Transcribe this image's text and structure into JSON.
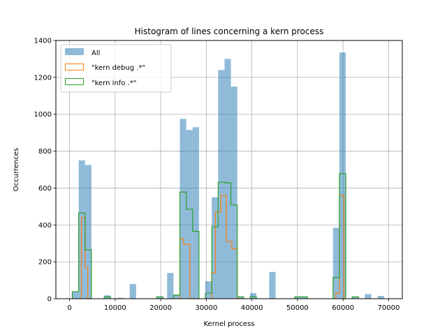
{
  "chart_data": {
    "type": "bar",
    "title": "Histogram of lines concerning a kern process",
    "xlabel": "Kernel process",
    "ylabel": "Occurrences",
    "xlim": [
      -3000,
      73000
    ],
    "ylim": [
      0,
      1400
    ],
    "xticks": [
      0,
      10000,
      20000,
      30000,
      40000,
      50000,
      60000,
      70000
    ],
    "yticks": [
      0,
      200,
      400,
      600,
      800,
      1000,
      1200,
      1400
    ],
    "grid": true,
    "legend_position": "top-left",
    "bin_width": 1400,
    "series": [
      {
        "name": "All",
        "style": "filled",
        "color": "#1f77b4",
        "opacity": 0.5,
        "bins": [
          {
            "x0": 600,
            "x1": 2000,
            "value": 40
          },
          {
            "x0": 2000,
            "x1": 3400,
            "value": 750
          },
          {
            "x0": 3400,
            "x1": 4800,
            "value": 725
          },
          {
            "x0": 7600,
            "x1": 9000,
            "value": 18
          },
          {
            "x0": 10400,
            "x1": 11800,
            "value": 5
          },
          {
            "x0": 13200,
            "x1": 14600,
            "value": 80
          },
          {
            "x0": 19100,
            "x1": 20500,
            "value": 12
          },
          {
            "x0": 21400,
            "x1": 22800,
            "value": 140
          },
          {
            "x0": 22800,
            "x1": 24200,
            "value": 20
          },
          {
            "x0": 24200,
            "x1": 25600,
            "value": 975
          },
          {
            "x0": 25600,
            "x1": 27000,
            "value": 915
          },
          {
            "x0": 27000,
            "x1": 28400,
            "value": 930
          },
          {
            "x0": 29800,
            "x1": 31200,
            "value": 95
          },
          {
            "x0": 31200,
            "x1": 32600,
            "value": 550
          },
          {
            "x0": 32600,
            "x1": 34000,
            "value": 1240
          },
          {
            "x0": 34000,
            "x1": 35400,
            "value": 1300
          },
          {
            "x0": 35400,
            "x1": 36800,
            "value": 1150
          },
          {
            "x0": 36800,
            "x1": 38200,
            "value": 12
          },
          {
            "x0": 39600,
            "x1": 41000,
            "value": 30
          },
          {
            "x0": 43800,
            "x1": 45200,
            "value": 145
          },
          {
            "x0": 49400,
            "x1": 50800,
            "value": 10
          },
          {
            "x0": 50800,
            "x1": 52200,
            "value": 10
          },
          {
            "x0": 57800,
            "x1": 59200,
            "value": 385
          },
          {
            "x0": 59200,
            "x1": 60600,
            "value": 1335
          },
          {
            "x0": 62000,
            "x1": 63400,
            "value": 10
          },
          {
            "x0": 64800,
            "x1": 66200,
            "value": 25
          },
          {
            "x0": 67600,
            "x1": 69000,
            "value": 15
          }
        ]
      },
      {
        "name": "\"kern debug .*\"",
        "style": "step",
        "color": "#ff7f0e",
        "bins": [
          {
            "x0": 2000,
            "x1": 2600,
            "value": 0
          },
          {
            "x0": 2600,
            "x1": 3400,
            "value": 440
          },
          {
            "x0": 3400,
            "x1": 4000,
            "value": 170
          },
          {
            "x0": 4000,
            "x1": 4800,
            "value": 0
          },
          {
            "x0": 24200,
            "x1": 25000,
            "value": 325
          },
          {
            "x0": 25000,
            "x1": 26400,
            "value": 295
          },
          {
            "x0": 26400,
            "x1": 27600,
            "value": 0
          },
          {
            "x0": 27600,
            "x1": 28200,
            "value": 0
          },
          {
            "x0": 31200,
            "x1": 32000,
            "value": 140
          },
          {
            "x0": 32000,
            "x1": 33200,
            "value": 470
          },
          {
            "x0": 33200,
            "x1": 34400,
            "value": 560
          },
          {
            "x0": 34400,
            "x1": 35600,
            "value": 310
          },
          {
            "x0": 35600,
            "x1": 36800,
            "value": 270
          },
          {
            "x0": 36800,
            "x1": 37600,
            "value": 0
          },
          {
            "x0": 58400,
            "x1": 59200,
            "value": 30
          },
          {
            "x0": 59200,
            "x1": 60200,
            "value": 560
          },
          {
            "x0": 60200,
            "x1": 60600,
            "value": 0
          }
        ]
      },
      {
        "name": "\"kern info .*\"",
        "style": "step",
        "color": "#2ca02c",
        "bins": [
          {
            "x0": 600,
            "x1": 2000,
            "value": 38
          },
          {
            "x0": 2000,
            "x1": 3400,
            "value": 465
          },
          {
            "x0": 3400,
            "x1": 4800,
            "value": 265
          },
          {
            "x0": 7600,
            "x1": 9000,
            "value": 10
          },
          {
            "x0": 19100,
            "x1": 20500,
            "value": 10
          },
          {
            "x0": 22800,
            "x1": 24200,
            "value": 20
          },
          {
            "x0": 24200,
            "x1": 25600,
            "value": 578
          },
          {
            "x0": 25600,
            "x1": 27000,
            "value": 485
          },
          {
            "x0": 27000,
            "x1": 28400,
            "value": 365
          },
          {
            "x0": 29800,
            "x1": 31200,
            "value": 30
          },
          {
            "x0": 31200,
            "x1": 32600,
            "value": 390
          },
          {
            "x0": 32600,
            "x1": 34000,
            "value": 632
          },
          {
            "x0": 34000,
            "x1": 35400,
            "value": 628
          },
          {
            "x0": 35400,
            "x1": 36800,
            "value": 508
          },
          {
            "x0": 36800,
            "x1": 38200,
            "value": 10
          },
          {
            "x0": 39600,
            "x1": 41000,
            "value": 10
          },
          {
            "x0": 49400,
            "x1": 50800,
            "value": 10
          },
          {
            "x0": 50800,
            "x1": 52200,
            "value": 10
          },
          {
            "x0": 57800,
            "x1": 59200,
            "value": 115
          },
          {
            "x0": 59200,
            "x1": 60600,
            "value": 678
          },
          {
            "x0": 62000,
            "x1": 63400,
            "value": 10
          }
        ]
      }
    ]
  }
}
